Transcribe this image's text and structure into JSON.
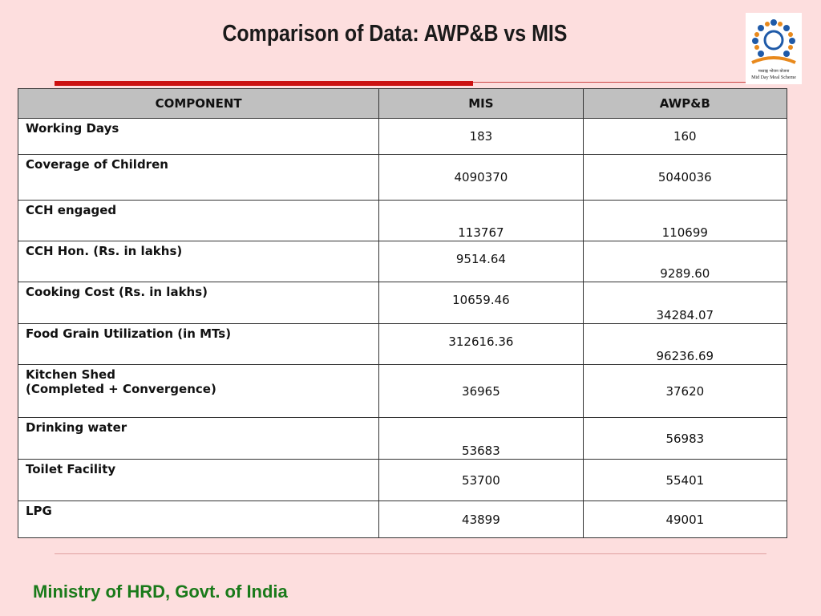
{
  "header": {
    "title": "Comparison of Data: AWP&B vs MIS",
    "logo_hindi": "मध्याह्न भोजन योजना",
    "logo_text": "Mid Day Meal Scheme"
  },
  "table": {
    "columns": [
      "COMPONENT",
      "MIS",
      "AWP&B"
    ],
    "rows": [
      [
        "Working Days",
        "183",
        "160"
      ],
      [
        "Coverage of Children",
        "4090370",
        "5040036"
      ],
      [
        "CCH engaged",
        "113767",
        "110699"
      ],
      [
        "CCH Hon. (Rs. in lakhs)",
        "9514.64",
        "9289.60"
      ],
      [
        "Cooking Cost (Rs. in lakhs)",
        "10659.46",
        "34284.07"
      ],
      [
        "Food Grain Utilization (in MTs)",
        "312616.36",
        "96236.69"
      ],
      [
        "Kitchen Shed\n(Completed + Convergence)",
        "36965",
        "37620"
      ],
      [
        "Drinking water",
        "53683",
        "56983"
      ],
      [
        "Toilet Facility",
        "53700",
        "55401"
      ],
      [
        "LPG",
        "43899",
        "49001"
      ]
    ]
  },
  "footer": {
    "text": "Ministry of HRD, Govt. of India"
  }
}
